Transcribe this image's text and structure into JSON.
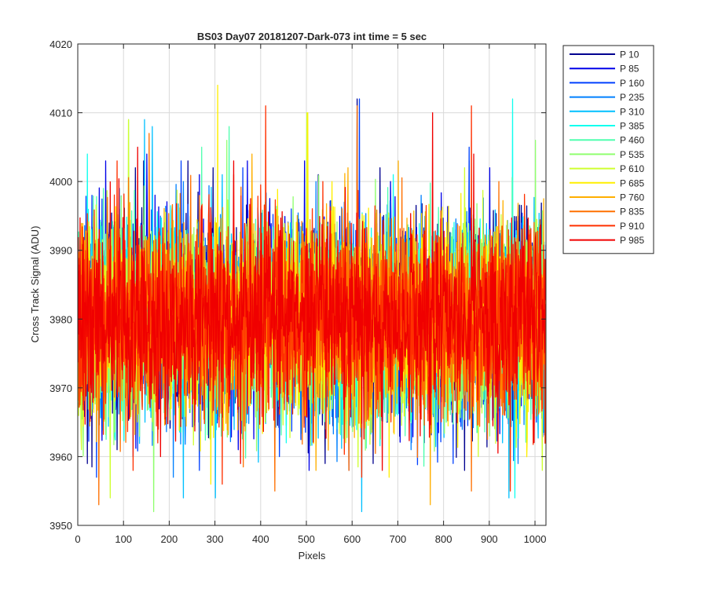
{
  "chart_data": {
    "type": "line",
    "title": "BS03 Day07 20181207-Dark-073 int time = 5 sec",
    "xlabel": "Pixels",
    "ylabel": "Cross Track Signal (ADU)",
    "xlim": [
      0,
      1024
    ],
    "ylim": [
      3950,
      4020
    ],
    "xticks": [
      0,
      100,
      200,
      300,
      400,
      500,
      600,
      700,
      800,
      900,
      1000
    ],
    "yticks": [
      3950,
      3960,
      3970,
      3980,
      3990,
      4000,
      4010,
      4020
    ],
    "grid": true,
    "legend_position": "outside-top-right",
    "noise": {
      "mean": 3980,
      "approx_std": 7
    },
    "series": [
      {
        "name": "P 10",
        "color": "#00008f",
        "seed": 11,
        "peaks": [
          [
            40,
            3995
          ],
          [
            125,
            4002
          ],
          [
            143,
            4003
          ],
          [
            240,
            4003
          ],
          [
            295,
            4002
          ],
          [
            525,
            4001
          ],
          [
            610,
            4012
          ],
          [
            660,
            4002
          ],
          [
            855,
            4003
          ]
        ],
        "troughs": [
          [
            20,
            3959
          ],
          [
            85,
            3961
          ],
          [
            540,
            3959
          ],
          [
            645,
            3959
          ],
          [
            845,
            3958
          ]
        ]
      },
      {
        "name": "P 85",
        "color": "#0000e8",
        "seed": 23,
        "peaks": [
          [
            60,
            4003
          ],
          [
            150,
            4004
          ],
          [
            265,
            4001
          ],
          [
            370,
            4003
          ],
          [
            495,
            4003
          ],
          [
            683,
            4000
          ],
          [
            900,
            4002
          ]
        ],
        "troughs": [
          [
            120,
            3960
          ],
          [
            350,
            3961
          ],
          [
            505,
            3958
          ],
          [
            592,
            3958
          ],
          [
            995,
            3962
          ]
        ]
      },
      {
        "name": "P 160",
        "color": "#0040ff",
        "seed": 37,
        "peaks": [
          [
            30,
            3998
          ],
          [
            225,
            4003
          ],
          [
            360,
            4002
          ],
          [
            615,
            4012
          ],
          [
            855,
            4005
          ]
        ],
        "troughs": [
          [
            40,
            3957
          ],
          [
            265,
            3958
          ],
          [
            440,
            3960
          ],
          [
            820,
            3959
          ]
        ]
      },
      {
        "name": "P 235",
        "color": "#0080ff",
        "seed": 41,
        "peaks": [
          [
            90,
            3999
          ],
          [
            230,
            4000
          ],
          [
            520,
            4000
          ],
          [
            750,
            3998
          ]
        ],
        "troughs": [
          [
            45,
            3957
          ],
          [
            208,
            3957
          ],
          [
            728,
            3961
          ],
          [
            962,
            3959
          ]
        ]
      },
      {
        "name": "P 310",
        "color": "#00c0ff",
        "seed": 53,
        "peaks": [
          [
            145,
            4009
          ],
          [
            162,
            4008
          ],
          [
            315,
            4001
          ]
        ],
        "troughs": [
          [
            230,
            3954
          ],
          [
            300,
            3954
          ],
          [
            620,
            3952
          ],
          [
            942,
            3954
          ]
        ]
      },
      {
        "name": "P 385",
        "color": "#10ffef",
        "seed": 67,
        "peaks": [
          [
            20,
            4004
          ],
          [
            950,
            4012
          ]
        ],
        "troughs": [
          [
            80,
            3963
          ],
          [
            455,
            3962
          ],
          [
            955,
            3954
          ]
        ]
      },
      {
        "name": "P 460",
        "color": "#50ffaf",
        "seed": 71,
        "peaks": [
          [
            55,
            3999
          ],
          [
            270,
            4005
          ],
          [
            330,
            4008
          ]
        ],
        "troughs": [
          [
            70,
            3965
          ],
          [
            805,
            3965
          ]
        ]
      },
      {
        "name": "P 535",
        "color": "#90ff6f",
        "seed": 83,
        "peaks": [
          [
            110,
            4009
          ],
          [
            325,
            4006
          ],
          [
            1000,
            4006
          ]
        ],
        "troughs": [
          [
            165,
            3952
          ],
          [
            900,
            3963
          ]
        ]
      },
      {
        "name": "P 610",
        "color": "#cfff30",
        "seed": 97,
        "peaks": [
          [
            110,
            4009
          ],
          [
            500,
            4010
          ],
          [
            845,
            4002
          ]
        ],
        "troughs": [
          [
            70,
            3954
          ],
          [
            875,
            3960
          ],
          [
            1015,
            3958
          ]
        ]
      },
      {
        "name": "P 685",
        "color": "#ffef00",
        "seed": 101,
        "peaks": [
          [
            305,
            4014
          ],
          [
            502,
            4010
          ],
          [
            555,
            4000
          ]
        ],
        "troughs": [
          [
            290,
            3956
          ],
          [
            680,
            3957
          ]
        ]
      },
      {
        "name": "P 760",
        "color": "#ffaf00",
        "seed": 113,
        "peaks": [
          [
            380,
            4004
          ],
          [
            590,
            4002
          ],
          [
            700,
            4003
          ]
        ],
        "troughs": [
          [
            520,
            3958
          ],
          [
            770,
            3953
          ]
        ]
      },
      {
        "name": "P 835",
        "color": "#ff7000",
        "seed": 127,
        "peaks": [
          [
            155,
            4007
          ],
          [
            340,
            4001
          ],
          [
            610,
            4011
          ],
          [
            920,
            4000
          ]
        ],
        "troughs": [
          [
            45,
            3953
          ],
          [
            430,
            3955
          ],
          [
            592,
            3958
          ],
          [
            860,
            3955
          ]
        ]
      },
      {
        "name": "P 910",
        "color": "#ff3000",
        "seed": 131,
        "peaks": [
          [
            85,
            4003
          ],
          [
            410,
            4011
          ],
          [
            535,
            4000
          ],
          [
            860,
            4011
          ]
        ],
        "troughs": [
          [
            120,
            3958
          ],
          [
            315,
            3956
          ],
          [
            620,
            3957
          ],
          [
            945,
            3955
          ]
        ]
      },
      {
        "name": "P 985",
        "color": "#f00000",
        "seed": 139,
        "peaks": [
          [
            130,
            4005
          ],
          [
            340,
            4003
          ],
          [
            775,
            4010
          ],
          [
            865,
            4004
          ]
        ],
        "troughs": [
          [
            180,
            3960
          ],
          [
            355,
            3959
          ],
          [
            665,
            3958
          ]
        ]
      }
    ]
  }
}
